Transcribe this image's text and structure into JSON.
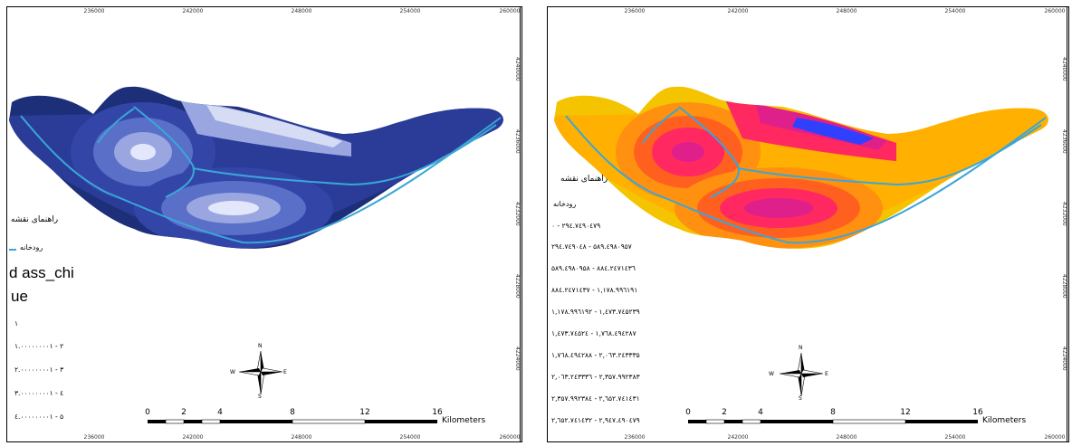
{
  "left_map": {
    "x_ticks": [
      "236000",
      "242000",
      "248000",
      "254000",
      "260000"
    ],
    "y_ticks": [
      "4240000",
      "4236000",
      "4232000",
      "4228000",
      "4224000"
    ],
    "legend_title": "راهنمای نقشه",
    "river_label": "رودخانه",
    "field_name_1": "d ass_chi",
    "field_name_2": "ue",
    "classes": [
      "۱",
      "۱.۰۰۰۰۰۰۰۰۱ - ۲",
      "۲.۰۰۰۰۰۰۰۰۱ - ۳",
      "۳.۰۰۰۰۰۰۰۰۱ - ٤",
      "٤.۰۰۰۰۰۰۰۰۱ - ۵"
    ],
    "scale_labels": [
      "0",
      "2",
      "4",
      "8",
      "12",
      "16"
    ],
    "scale_unit": "Kilometers",
    "north": "N",
    "south": "S",
    "east": "E",
    "west": "W",
    "colors": {
      "river": "#3aa6d8",
      "c1": "#1e2f7a",
      "c2": "#3346a8",
      "c3": "#5a6fc8",
      "c4": "#9aa6e0",
      "c5": "#d7dcf5"
    }
  },
  "right_map": {
    "x_ticks": [
      "236000",
      "242000",
      "248000",
      "254000",
      "260000"
    ],
    "y_ticks": [
      "4240000",
      "4236000",
      "4232000",
      "4228000",
      "4224000"
    ],
    "legend_title": "راهنمای نقشه",
    "river_label": "رودخانه",
    "classes": [
      "۰ - ۲۹٤.۷٤۹۰٤۷۹",
      "۲۹٤.۷٤۹۰٤۸ - ۵۸۹.٤۹۸۰۹۵۷",
      "۵۸۹.٤۹۸۰۹۵۸ - ۸۸٤.۲٤۷۱٤۳٦",
      "۸۸٤.۲٤۷۱٤۳۷ - ۱,۱۷۸.۹۹٦۱۹۱",
      "۱,۱۷۸.۹۹٦۱۹۲ - ۱,٤۷۳.۷٤۵۲۳۹",
      "۱,٤۷۳.۷٤۵۲٤ - ۱,۷٦۸.٤۹٤۲۸۷",
      "۱,۷٦۸.٤۹٤۲۸۸ - ۲,۰٦۳.۲٤۳۳۳۵",
      "۲,۰٦۳.۲٤۳۳۳٦ - ۲,۳۵۷.۹۹۲۳۸۳",
      "۲,۳۵۷.۹۹۲۳۸٤ - ۲,٦۵۲.۷٤۱٤۳۱",
      "۲,٦۵۲.۷٤۱٤۳۲ - ۲,۹٤۷.٤۹۰٤۷۹"
    ],
    "scale_labels": [
      "0",
      "2",
      "4",
      "8",
      "12",
      "16"
    ],
    "scale_unit": "Kilometers",
    "north": "N",
    "south": "S",
    "east": "E",
    "west": "W",
    "colors": {
      "river": "#3aa6d8",
      "low": "#f5c400",
      "mid": "#ff7a10",
      "high": "#ff2060",
      "peak": "#e0208a",
      "top": "#3040ff"
    }
  }
}
